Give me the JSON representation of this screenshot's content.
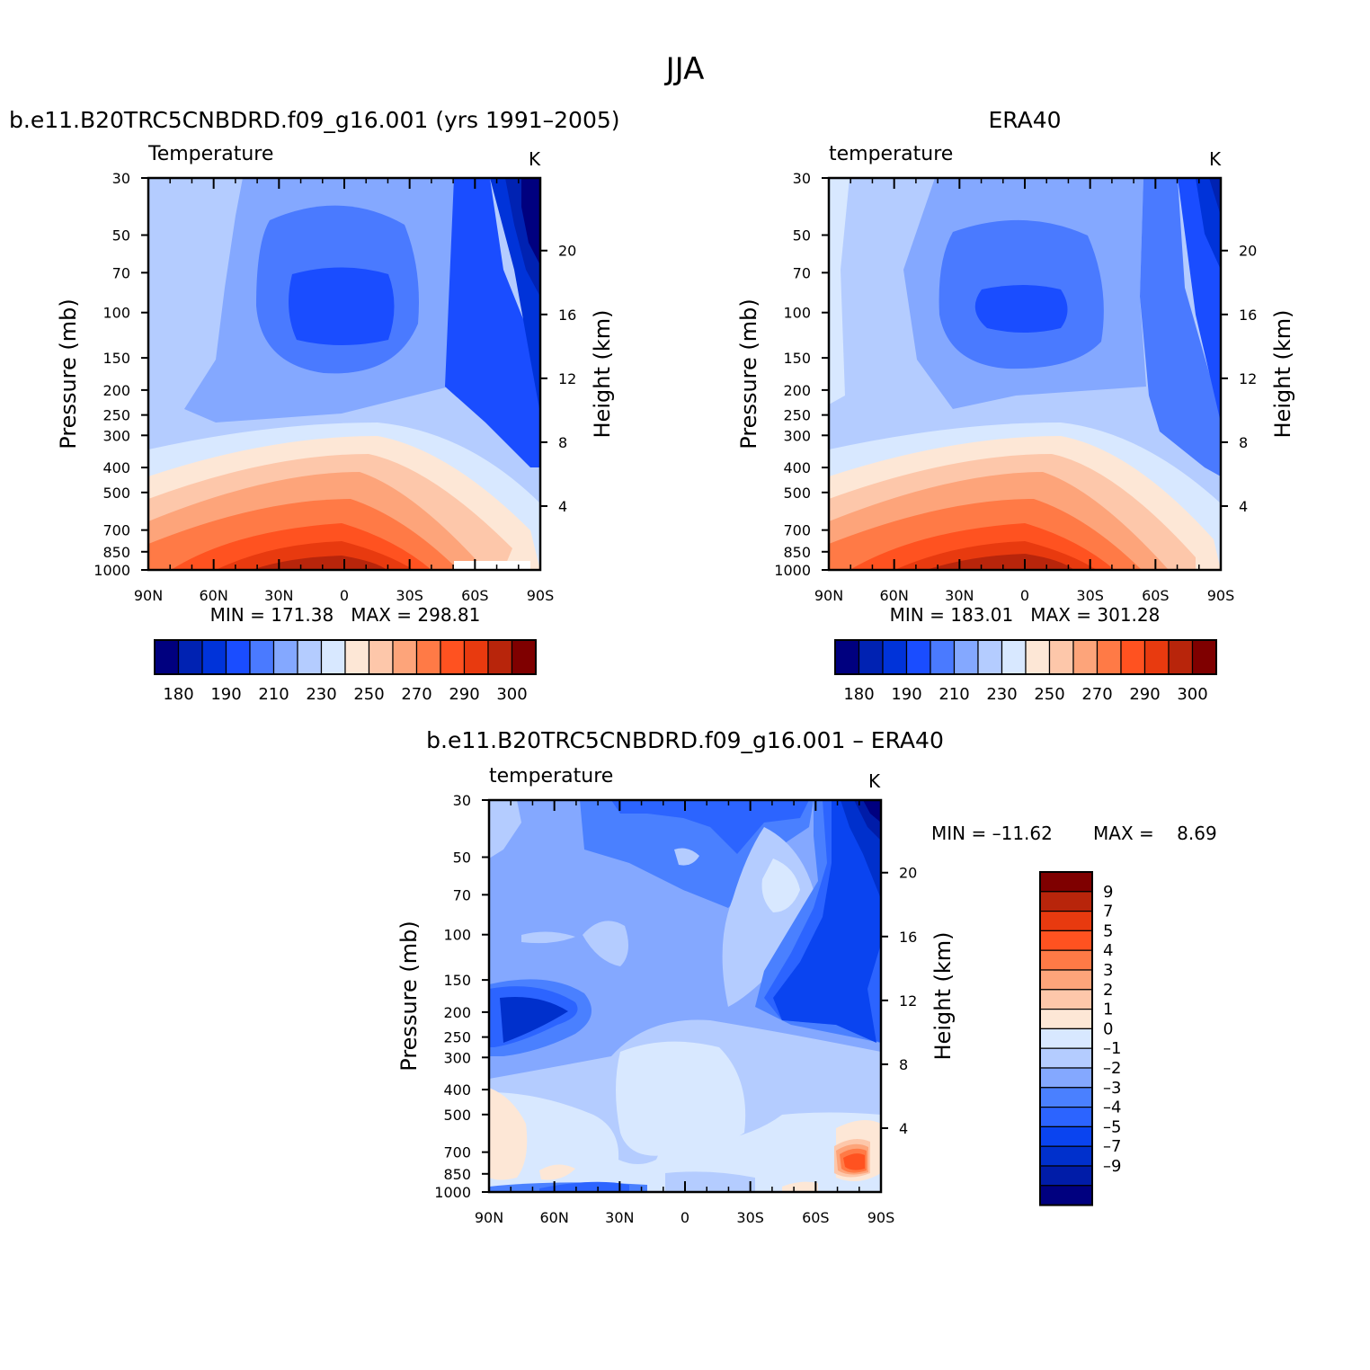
{
  "figure": {
    "title": "JJA"
  },
  "colors": {
    "abs_levels": [
      "#00007f",
      "#0022b2",
      "#0033d9",
      "#1a4dff",
      "#4a7aff",
      "#84a8ff",
      "#b4ccff",
      "#d8e8ff",
      "#fde7d6",
      "#fdc7aa",
      "#fda47a",
      "#ff7a46",
      "#ff5220",
      "#e83a0f",
      "#b8250b",
      "#7f0000"
    ],
    "diff_levels": [
      "#00007f",
      "#001ca8",
      "#0030cc",
      "#0a44f0",
      "#2c64ff",
      "#4a80ff",
      "#84a8ff",
      "#b4ccff",
      "#d8e8ff",
      "#fde7d6",
      "#fdc7aa",
      "#fda47a",
      "#ff7a46",
      "#ff5220",
      "#e83a0f",
      "#b8250b",
      "#7f0000"
    ]
  },
  "chart_data": [
    {
      "type": "heatmap",
      "title": "b.e11.B20TRC5CNBDRD.f09_g16.001 (yrs 1991–2005)",
      "field": "Temperature",
      "units": "K",
      "ylabel": "Pressure (mb)",
      "y2label": "Height (km)",
      "x_ticks": [
        "90N",
        "60N",
        "30N",
        "0",
        "30S",
        "60S",
        "90S"
      ],
      "x_range": [
        90,
        -90
      ],
      "y_range": [
        1000,
        30
      ],
      "y_scale": "log",
      "y_ticks": [
        30,
        50,
        70,
        100,
        150,
        200,
        250,
        300,
        400,
        500,
        700,
        850,
        1000
      ],
      "y2_ticks": [
        20,
        16,
        12,
        8,
        4
      ],
      "stats": "MIN = 171.38   MAX = 298.81",
      "colorbar_labels": [
        "180",
        "190",
        "210",
        "230",
        "250",
        "270",
        "290",
        "300"
      ],
      "contour_levels": [
        175,
        180,
        185,
        190,
        200,
        210,
        220,
        230,
        240,
        250,
        260,
        270,
        280,
        290,
        295,
        300
      ]
    },
    {
      "type": "heatmap",
      "title": "ERA40",
      "field": "temperature",
      "units": "K",
      "ylabel": "Pressure (mb)",
      "y2label": "Height (km)",
      "x_ticks": [
        "90N",
        "60N",
        "30N",
        "0",
        "30S",
        "60S",
        "90S"
      ],
      "x_range": [
        90,
        -90
      ],
      "y_range": [
        1000,
        30
      ],
      "y_scale": "log",
      "y_ticks": [
        30,
        50,
        70,
        100,
        150,
        200,
        250,
        300,
        400,
        500,
        700,
        850,
        1000
      ],
      "y2_ticks": [
        20,
        16,
        12,
        8,
        4
      ],
      "stats": "MIN = 183.01   MAX = 301.28",
      "colorbar_labels": [
        "180",
        "190",
        "210",
        "230",
        "250",
        "270",
        "290",
        "300"
      ],
      "contour_levels": [
        175,
        180,
        185,
        190,
        200,
        210,
        220,
        230,
        240,
        250,
        260,
        270,
        280,
        290,
        295,
        300
      ]
    },
    {
      "type": "heatmap",
      "title": "b.e11.B20TRC5CNBDRD.f09_g16.001 – ERA40",
      "field": "temperature",
      "units": "K",
      "ylabel": "Pressure (mb)",
      "y2label": "Height (km)",
      "x_ticks": [
        "90N",
        "60N",
        "30N",
        "0",
        "30S",
        "60S",
        "90S"
      ],
      "x_range": [
        90,
        -90
      ],
      "y_range": [
        1000,
        30
      ],
      "y_scale": "log",
      "y_ticks": [
        30,
        50,
        70,
        100,
        150,
        200,
        250,
        300,
        400,
        500,
        700,
        850,
        1000
      ],
      "y2_ticks": [
        20,
        16,
        12,
        8,
        4
      ],
      "stats_min": "MIN = –11.62",
      "stats_max": "MAX =    8.69",
      "colorbar_labels": [
        "9",
        "7",
        "5",
        "4",
        "3",
        "2",
        "1",
        "0",
        "–1",
        "–2",
        "–3",
        "–4",
        "–5",
        "–7",
        "–9"
      ],
      "contour_levels": [
        -9,
        -7,
        -5,
        -4,
        -3,
        -2,
        -1,
        0,
        1,
        2,
        3,
        4,
        5,
        7,
        9
      ]
    }
  ]
}
